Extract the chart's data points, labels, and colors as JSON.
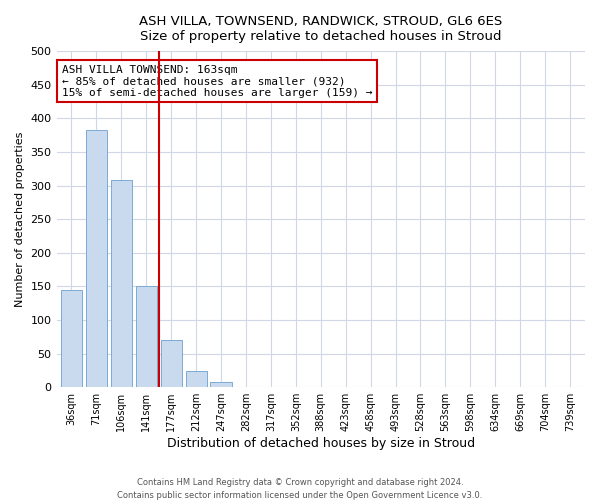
{
  "title": "ASH VILLA, TOWNSEND, RANDWICK, STROUD, GL6 6ES",
  "subtitle": "Size of property relative to detached houses in Stroud",
  "xlabel": "Distribution of detached houses by size in Stroud",
  "ylabel": "Number of detached properties",
  "bar_labels": [
    "36sqm",
    "71sqm",
    "106sqm",
    "141sqm",
    "177sqm",
    "212sqm",
    "247sqm",
    "282sqm",
    "317sqm",
    "352sqm",
    "388sqm",
    "423sqm",
    "458sqm",
    "493sqm",
    "528sqm",
    "563sqm",
    "598sqm",
    "634sqm",
    "669sqm",
    "704sqm",
    "739sqm"
  ],
  "bar_values": [
    144,
    383,
    308,
    150,
    70,
    24,
    8,
    0,
    0,
    0,
    0,
    0,
    0,
    0,
    0,
    0,
    0,
    0,
    0,
    0,
    0
  ],
  "bar_color": "#c9d9ee",
  "bar_edge_color": "#7baad4",
  "vline_x": 3.5,
  "vline_color": "#cc0000",
  "annotation_text": "ASH VILLA TOWNSEND: 163sqm\n← 85% of detached houses are smaller (932)\n15% of semi-detached houses are larger (159) →",
  "annotation_box_color": "#ffffff",
  "annotation_box_edge": "#cc0000",
  "ylim": [
    0,
    500
  ],
  "yticks": [
    0,
    50,
    100,
    150,
    200,
    250,
    300,
    350,
    400,
    450,
    500
  ],
  "footer_line1": "Contains HM Land Registry data © Crown copyright and database right 2024.",
  "footer_line2": "Contains public sector information licensed under the Open Government Licence v3.0.",
  "bg_color": "#ffffff",
  "plot_bg_color": "#ffffff",
  "grid_color": "#d0d8e8"
}
